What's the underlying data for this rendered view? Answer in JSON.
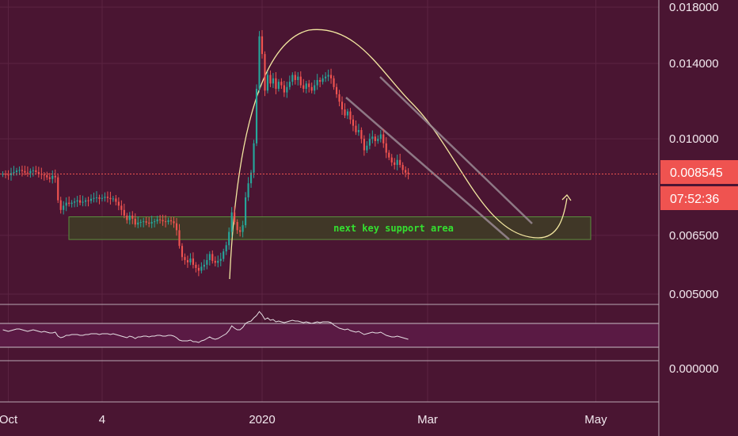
{
  "colors": {
    "background": "#4a1532",
    "grid": "#5c2442",
    "up": "#26a69a",
    "down": "#ef5350",
    "curve": "#f2e6a0",
    "channel": "#9a8a94",
    "zone_fill": "#3f3b26",
    "zone_border": "#5a8f3c",
    "zone_text": "#34e030",
    "rsi_line": "#e6e0e4",
    "rsi_band": "#5a1a44",
    "badge_price": "#ef5350",
    "axis_text": "#f2e8ee"
  },
  "chart_data": {
    "type": "candlestick",
    "price_axis": {
      "ticks": [
        {
          "value": 0.018,
          "label": "0.018000"
        },
        {
          "value": 0.014,
          "label": "0.014000"
        },
        {
          "value": 0.01,
          "label": "0.010000"
        },
        {
          "value": 0.0065,
          "label": "0.006500"
        },
        {
          "value": 0.005,
          "label": "0.005000"
        }
      ],
      "scale": "log"
    },
    "rsi_axis": {
      "ticks": [
        {
          "value": 0,
          "label": "0.000000"
        }
      ]
    },
    "time_axis": {
      "ticks": [
        {
          "date": "2019-10-01",
          "label": "Oct"
        },
        {
          "date": "2019-11-04",
          "label": "4"
        },
        {
          "date": "2020-01-01",
          "label": "2020"
        },
        {
          "date": "2020-03-01",
          "label": "Mar"
        },
        {
          "date": "2020-05-01",
          "label": "May"
        }
      ]
    },
    "last_price": {
      "value": 0.008545,
      "label": "0.008545",
      "countdown": "07:52:36"
    },
    "support_zone": {
      "low": 0.00638,
      "high": 0.00706,
      "label": "next key support area"
    },
    "closes": [
      0.00855,
      0.00852,
      0.0085,
      0.00858,
      0.00862,
      0.00868,
      0.0087,
      0.00866,
      0.0086,
      0.00858,
      0.00866,
      0.00869,
      0.00862,
      0.00855,
      0.00852,
      0.0085,
      0.00842,
      0.00836,
      0.00848,
      0.00842,
      0.0076,
      0.00728,
      0.00742,
      0.00752,
      0.00748,
      0.00752,
      0.00756,
      0.0076,
      0.00752,
      0.00755,
      0.0076,
      0.00758,
      0.00765,
      0.00768,
      0.0077,
      0.00765,
      0.00768,
      0.00772,
      0.00768,
      0.00764,
      0.00766,
      0.00755,
      0.00742,
      0.00728,
      0.0071,
      0.00696,
      0.0071,
      0.007,
      0.00682,
      0.00688,
      0.0069,
      0.00692,
      0.00688,
      0.00685,
      0.0069,
      0.00692,
      0.00698,
      0.00696,
      0.00692,
      0.0069,
      0.00695,
      0.00692,
      0.00686,
      0.00665,
      0.0062,
      0.0059,
      0.00582,
      0.00576,
      0.00586,
      0.0057,
      0.00562,
      0.00555,
      0.00565,
      0.0057,
      0.00582,
      0.00598,
      0.0058,
      0.00575,
      0.0058,
      0.00585,
      0.00605,
      0.00622,
      0.0066,
      0.0072,
      0.0069,
      0.00665,
      0.0066,
      0.0068,
      0.0077,
      0.0082,
      0.0086,
      0.0098,
      0.0125,
      0.0158,
      0.0146,
      0.0124,
      0.0133,
      0.0128,
      0.0131,
      0.0125,
      0.0129,
      0.0127,
      0.0123,
      0.0126,
      0.0129,
      0.0133,
      0.013,
      0.0132,
      0.0127,
      0.0125,
      0.0128,
      0.0126,
      0.0124,
      0.0127,
      0.013,
      0.0129,
      0.0131,
      0.0132,
      0.0133,
      0.0131,
      0.0126,
      0.0122,
      0.0118,
      0.0114,
      0.0111,
      0.0113,
      0.0109,
      0.0106,
      0.0103,
      0.0104,
      0.01,
      0.0095,
      0.0097,
      0.01,
      0.0101,
      0.0099,
      0.01,
      0.0102,
      0.0098,
      0.0094,
      0.0092,
      0.009,
      0.0089,
      0.0091,
      0.0089,
      0.0087,
      0.0086,
      0.00855
    ],
    "rsi": [
      47,
      46,
      45,
      46,
      47,
      48,
      48,
      47,
      46,
      45,
      46,
      47,
      46,
      45,
      44,
      45,
      44,
      43,
      43,
      44,
      39,
      37,
      38,
      40,
      40,
      41,
      41,
      41,
      40,
      40,
      41,
      41,
      42,
      42,
      42,
      41,
      42,
      42,
      42,
      41,
      42,
      41,
      40,
      39,
      38,
      37,
      39,
      38,
      36,
      38,
      38,
      39,
      39,
      38,
      39,
      39,
      40,
      40,
      39,
      39,
      40,
      40,
      39,
      37,
      34,
      33,
      33,
      33,
      34,
      32,
      32,
      31,
      33,
      34,
      36,
      38,
      36,
      35,
      36,
      38,
      40,
      42,
      46,
      52,
      49,
      47,
      47,
      50,
      55,
      57,
      58,
      62,
      65,
      70,
      66,
      60,
      62,
      59,
      60,
      57,
      58,
      57,
      56,
      57,
      58,
      59,
      58,
      58,
      57,
      56,
      57,
      56,
      55,
      56,
      57,
      56,
      57,
      57,
      57,
      56,
      53,
      51,
      49,
      48,
      47,
      48,
      46,
      45,
      44,
      45,
      43,
      41,
      42,
      43,
      44,
      43,
      43,
      44,
      42,
      40,
      39,
      38,
      38,
      39,
      38,
      37,
      36,
      35
    ]
  }
}
